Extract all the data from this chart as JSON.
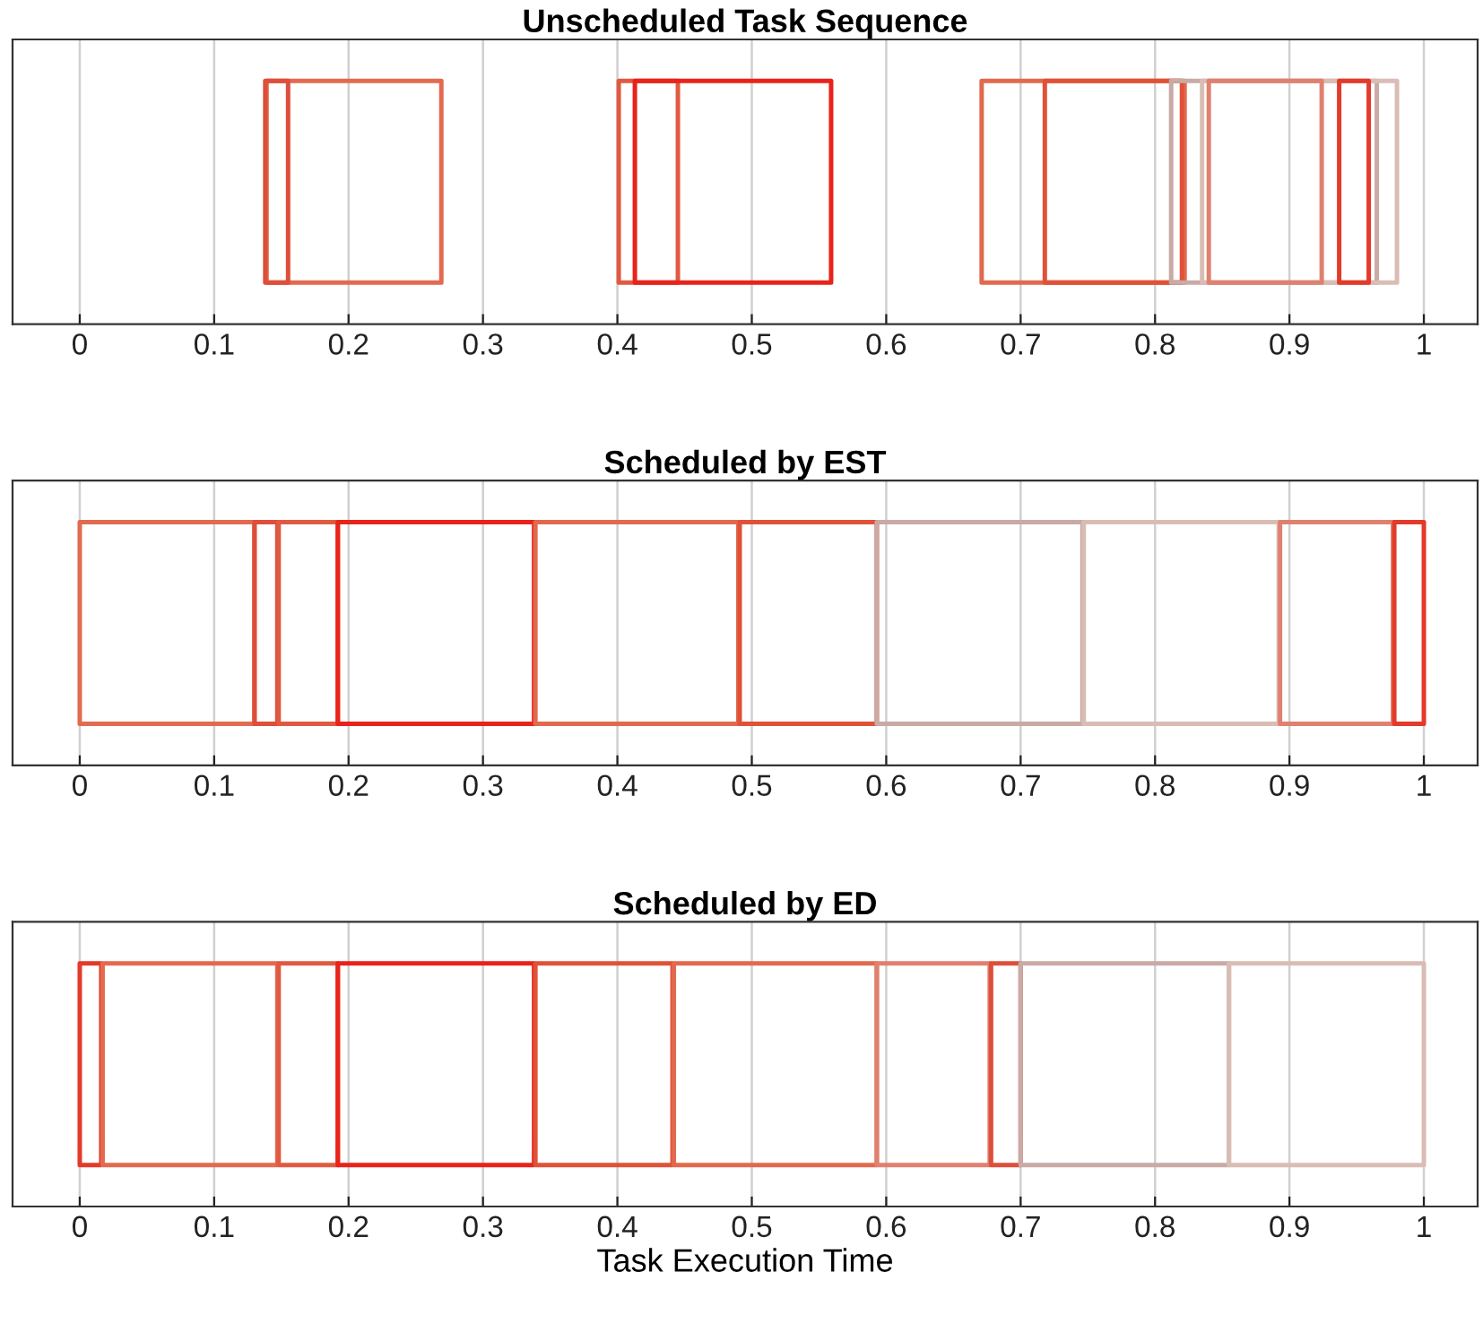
{
  "chart_data": [
    {
      "type": "bar",
      "orientation": "horizontal",
      "title": "Unscheduled Task Sequence",
      "categories": [
        null
      ],
      "xlim": [
        -0.05,
        1.04
      ],
      "xticks": [
        0,
        0.1,
        0.2,
        0.3,
        0.4,
        0.5,
        0.6,
        0.7,
        0.8,
        0.9,
        1
      ],
      "grid": "x",
      "tick_labels": "x",
      "series": [
        {
          "color": "#e36a4f",
          "base": [
            0.139
          ],
          "values": [
            0.13
          ]
        },
        {
          "color": "#dd4f3a",
          "base": [
            0.138
          ],
          "values": [
            0.017
          ]
        },
        {
          "color": "#e05a42",
          "base": [
            0.401
          ],
          "values": [
            0.044
          ]
        },
        {
          "color": "#e8231a",
          "base": [
            0.413
          ],
          "values": [
            0.146
          ]
        },
        {
          "color": "#e2694e",
          "base": [
            0.671
          ],
          "values": [
            0.151
          ]
        },
        {
          "color": "#df5238",
          "base": [
            0.718
          ],
          "values": [
            0.102
          ]
        },
        {
          "color": "#c9aaa5",
          "base": [
            0.812
          ],
          "values": [
            0.153
          ]
        },
        {
          "color": "#d9bdb5",
          "base": [
            0.835
          ],
          "values": [
            0.145
          ]
        },
        {
          "color": "#e08070",
          "base": [
            0.84
          ],
          "values": [
            0.084
          ]
        },
        {
          "color": "#e33a2a",
          "base": [
            0.937
          ],
          "values": [
            0.022
          ]
        }
      ]
    },
    {
      "type": "bar",
      "orientation": "horizontal",
      "title": "Scheduled by EST",
      "categories": [
        null
      ],
      "xlim": [
        -0.05,
        1.04
      ],
      "xticks": [
        0,
        0.1,
        0.2,
        0.3,
        0.4,
        0.5,
        0.6,
        0.7,
        0.8,
        0.9,
        1
      ],
      "grid": "x",
      "tick_labels": "x",
      "series": [
        {
          "color": "#e36a4f",
          "base": [
            0.0
          ],
          "values": [
            0.13
          ]
        },
        {
          "color": "#dd4f3a",
          "base": [
            0.13
          ],
          "values": [
            0.017
          ]
        },
        {
          "color": "#e05a42",
          "base": [
            0.148
          ],
          "values": [
            0.044
          ]
        },
        {
          "color": "#e8231a",
          "base": [
            0.192
          ],
          "values": [
            0.146
          ]
        },
        {
          "color": "#e2694e",
          "base": [
            0.339
          ],
          "values": [
            0.151
          ]
        },
        {
          "color": "#df5238",
          "base": [
            0.491
          ],
          "values": [
            0.102
          ]
        },
        {
          "color": "#c9aaa5",
          "base": [
            0.593
          ],
          "values": [
            0.153
          ]
        },
        {
          "color": "#d9bdb5",
          "base": [
            0.747
          ],
          "values": [
            0.145
          ]
        },
        {
          "color": "#e08070",
          "base": [
            0.893
          ],
          "values": [
            0.084
          ]
        },
        {
          "color": "#e33a2a",
          "base": [
            0.978
          ],
          "values": [
            0.022
          ]
        }
      ]
    },
    {
      "type": "bar",
      "orientation": "horizontal",
      "title": "Scheduled by ED",
      "xlabel": "Task Execution Time",
      "categories": [
        null
      ],
      "xlim": [
        -0.05,
        1.04
      ],
      "xticks": [
        0,
        0.1,
        0.2,
        0.3,
        0.4,
        0.5,
        0.6,
        0.7,
        0.8,
        0.9,
        1
      ],
      "grid": "x",
      "tick_labels": "x",
      "series": [
        {
          "color": "#e33a2a",
          "base": [
            0.0
          ],
          "values": [
            0.016
          ]
        },
        {
          "color": "#e36a4f",
          "base": [
            0.017
          ],
          "values": [
            0.13
          ]
        },
        {
          "color": "#e05a42",
          "base": [
            0.148
          ],
          "values": [
            0.044
          ]
        },
        {
          "color": "#e8231a",
          "base": [
            0.192
          ],
          "values": [
            0.146
          ]
        },
        {
          "color": "#df5238",
          "base": [
            0.339
          ],
          "values": [
            0.102
          ]
        },
        {
          "color": "#e2694e",
          "base": [
            0.442
          ],
          "values": [
            0.151
          ]
        },
        {
          "color": "#e08070",
          "base": [
            0.593
          ],
          "values": [
            0.084
          ]
        },
        {
          "color": "#dd4f3a",
          "base": [
            0.678
          ],
          "values": [
            0.022
          ]
        },
        {
          "color": "#c9aaa5",
          "base": [
            0.7
          ],
          "values": [
            0.155
          ]
        },
        {
          "color": "#d9bdb5",
          "base": [
            0.855
          ],
          "values": [
            0.145
          ]
        }
      ]
    }
  ]
}
